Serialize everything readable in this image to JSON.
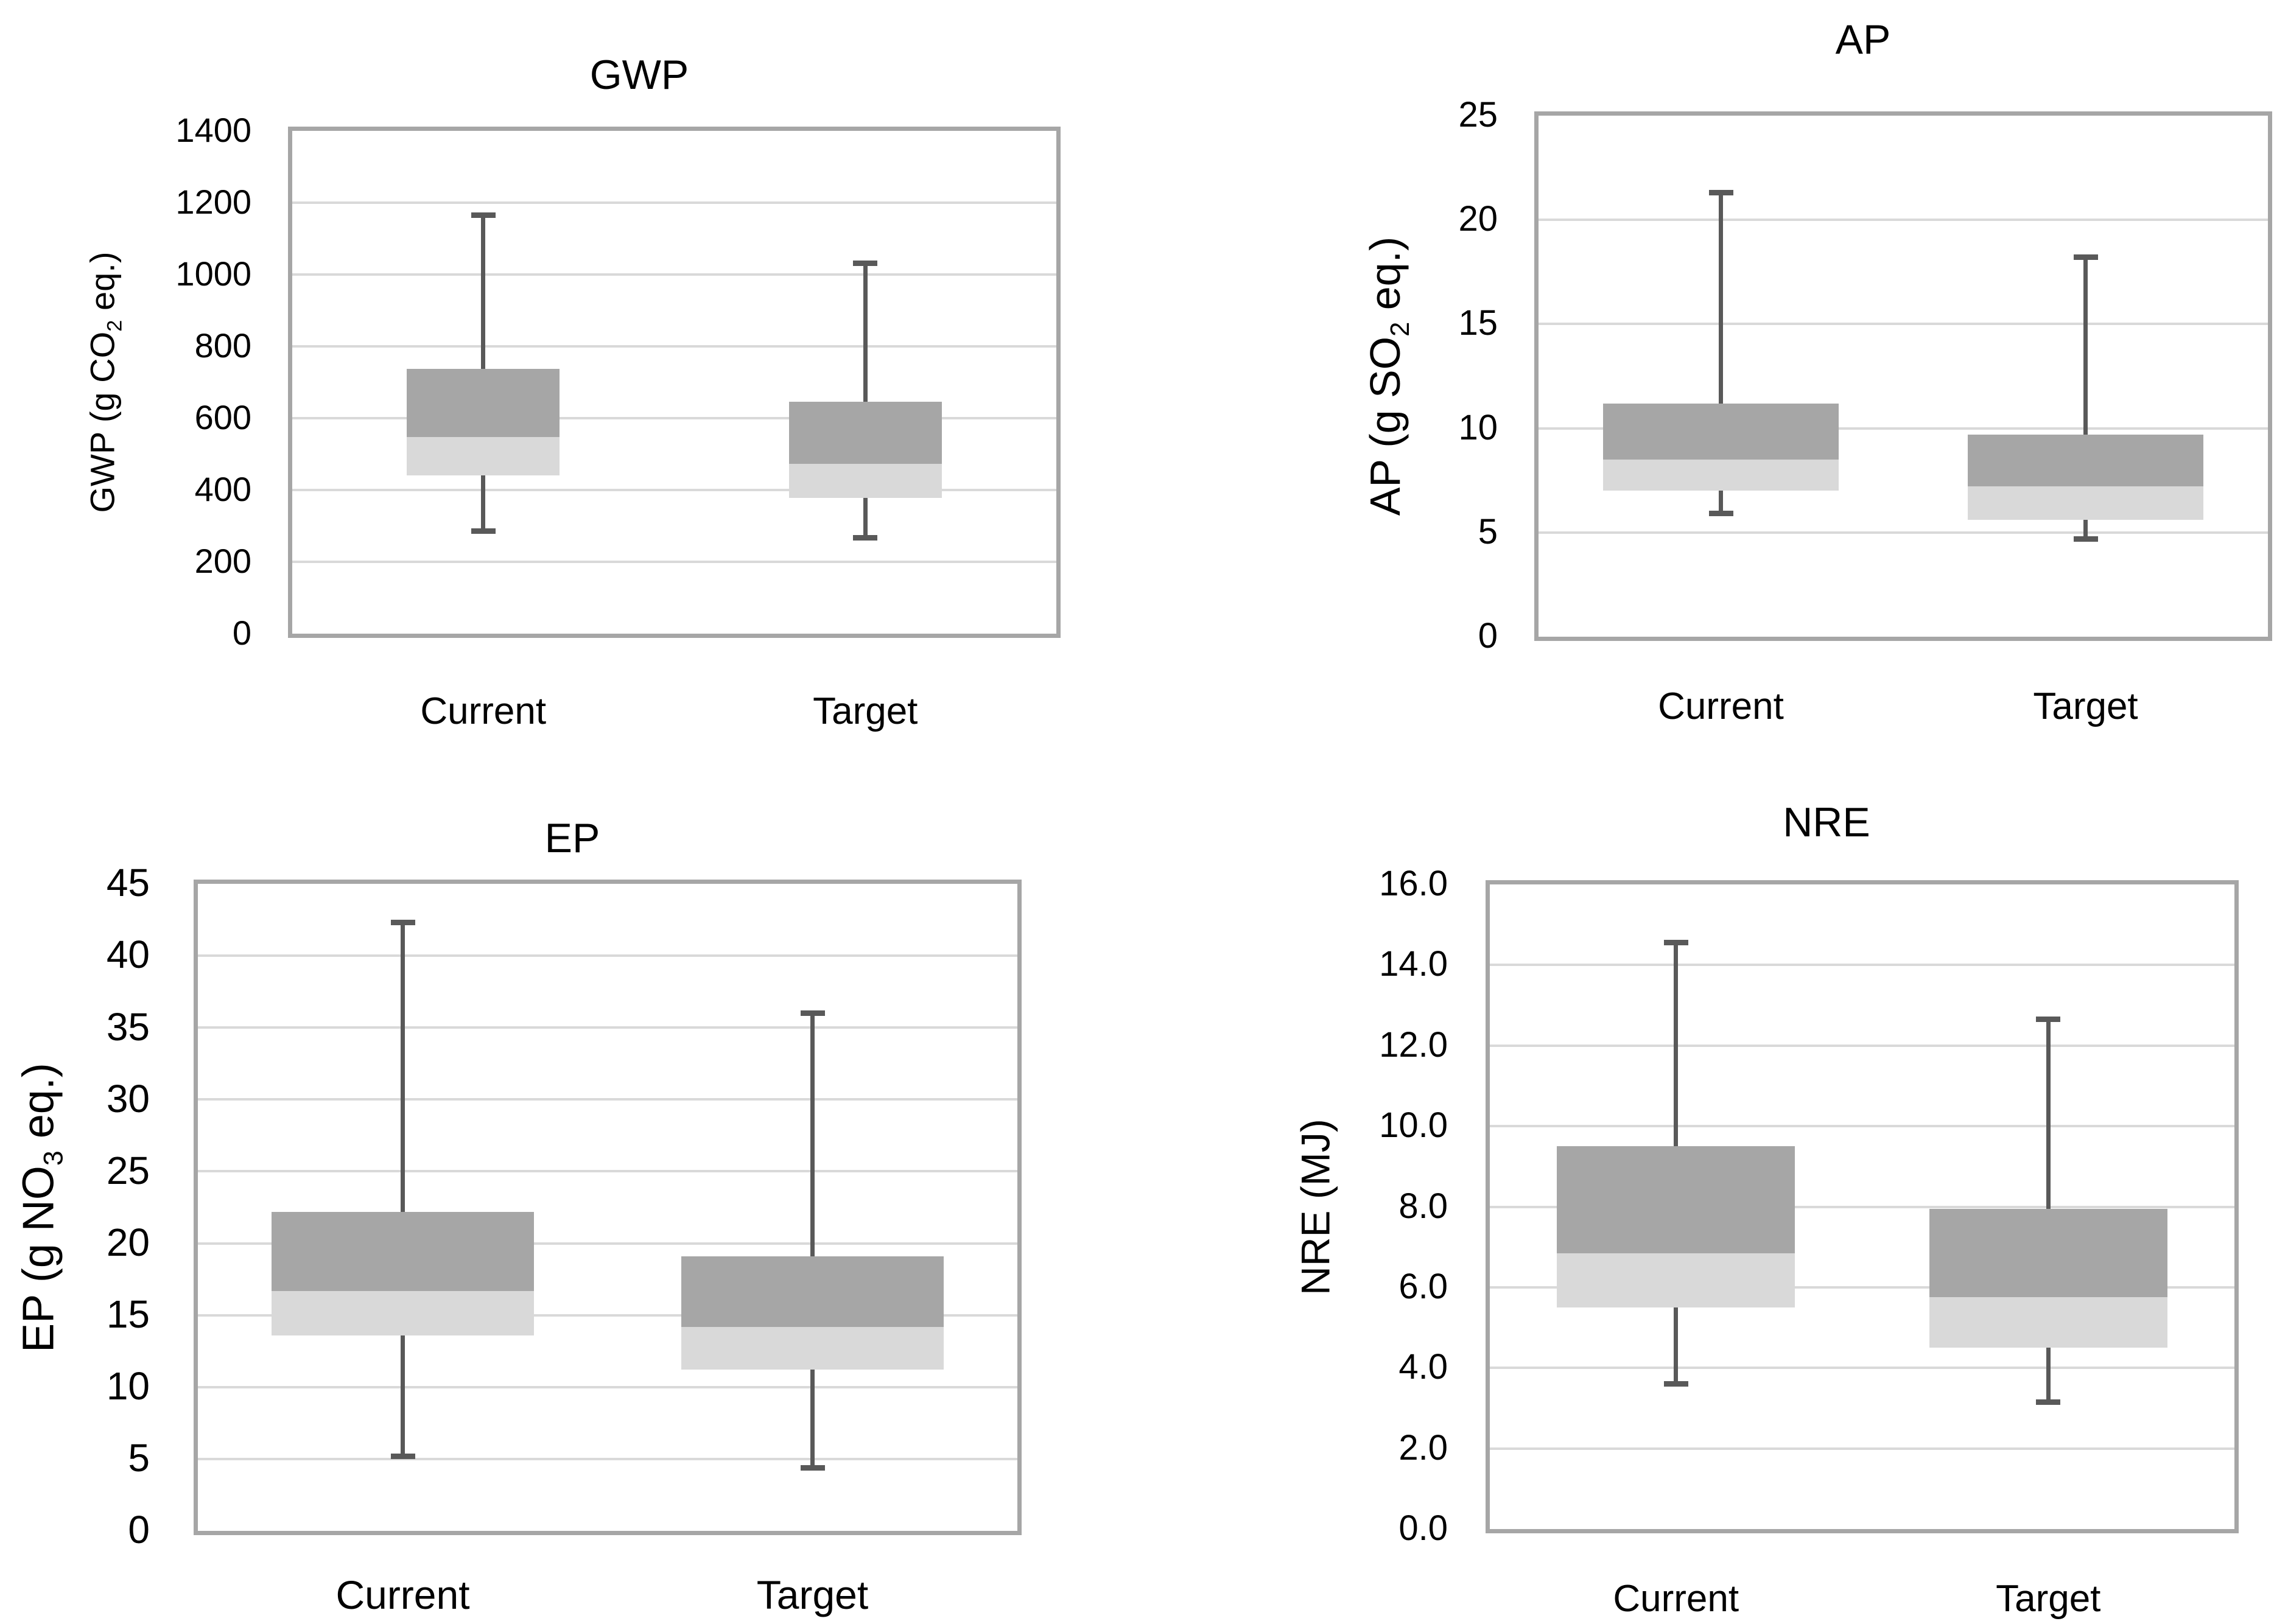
{
  "page": {
    "background": "#ffffff"
  },
  "colors": {
    "box_upper": "#a6a6a6",
    "box_lower": "#d9d9d9",
    "whisker": "#595959",
    "gridline": "#d9d9d9",
    "plot_border": "#a6a6a6",
    "text": "#000000"
  },
  "chart_data": [
    {
      "type": "box",
      "title": "GWP",
      "ylabel": {
        "prefix": "GWP (g CO",
        "sub": "2",
        "suffix": " eq.)"
      },
      "ylim": [
        0,
        1400
      ],
      "ytick_values": [
        1400,
        1200,
        1000,
        800,
        600,
        400,
        200,
        0
      ],
      "ytick_labels": [
        "1400",
        "1200",
        "1000",
        "800",
        "600",
        "400",
        "200",
        "0"
      ],
      "grid": true,
      "legend": false,
      "categories": [
        "Current",
        "Target"
      ],
      "series": [
        {
          "name": "Current",
          "whisker_low": 285,
          "q1": 440,
          "median": 547,
          "q3": 737,
          "whisker_high": 1165
        },
        {
          "name": "Target",
          "whisker_low": 267,
          "q1": 378,
          "median": 473,
          "q3": 645,
          "whisker_high": 1032
        }
      ]
    },
    {
      "type": "box",
      "title": "AP",
      "ylabel": {
        "prefix": "AP (g SO",
        "sub": "2",
        "suffix": " eq.)"
      },
      "ylim": [
        0,
        25
      ],
      "ytick_values": [
        25,
        20,
        15,
        10,
        5,
        0
      ],
      "ytick_labels": [
        "25",
        "20",
        "15",
        "10",
        "5",
        "0"
      ],
      "grid": true,
      "legend": false,
      "categories": [
        "Current",
        "Target"
      ],
      "series": [
        {
          "name": "Current",
          "whisker_low": 5.9,
          "q1": 7.0,
          "median": 8.5,
          "q3": 11.2,
          "whisker_high": 21.3
        },
        {
          "name": "Target",
          "whisker_low": 4.7,
          "q1": 5.6,
          "median": 7.2,
          "q3": 9.7,
          "whisker_high": 18.2
        }
      ]
    },
    {
      "type": "box",
      "title": "EP",
      "ylabel": {
        "prefix": "EP (g NO",
        "sub": "3",
        "suffix": " eq.)"
      },
      "ylim": [
        0,
        45
      ],
      "ytick_values": [
        45,
        40,
        35,
        30,
        25,
        20,
        15,
        10,
        5,
        0
      ],
      "ytick_labels": [
        "45",
        "40",
        "35",
        "30",
        "25",
        "20",
        "15",
        "10",
        "5",
        "0"
      ],
      "grid": true,
      "legend": false,
      "categories": [
        "Current",
        "Target"
      ],
      "series": [
        {
          "name": "Current",
          "whisker_low": 5.2,
          "q1": 13.6,
          "median": 16.7,
          "q3": 22.2,
          "whisker_high": 42.3
        },
        {
          "name": "Target",
          "whisker_low": 4.4,
          "q1": 11.2,
          "median": 14.2,
          "q3": 19.1,
          "whisker_high": 36.0
        }
      ]
    },
    {
      "type": "box",
      "title": "NRE",
      "ylabel": {
        "prefix": "NRE (MJ)",
        "sub": "",
        "suffix": ""
      },
      "ylim": [
        0,
        16
      ],
      "ytick_values": [
        16,
        14,
        12,
        10,
        8,
        6,
        4,
        2,
        0
      ],
      "ytick_labels": [
        "16.0",
        "14.0",
        "12.0",
        "10.0",
        "8.0",
        "6.0",
        "4.0",
        "2.0",
        "0.0"
      ],
      "grid": true,
      "legend": false,
      "categories": [
        "Current",
        "Target"
      ],
      "series": [
        {
          "name": "Current",
          "whisker_low": 3.6,
          "q1": 5.5,
          "median": 6.85,
          "q3": 9.5,
          "whisker_high": 14.55
        },
        {
          "name": "Target",
          "whisker_low": 3.15,
          "q1": 4.5,
          "median": 5.75,
          "q3": 7.95,
          "whisker_high": 12.65
        }
      ]
    }
  ]
}
